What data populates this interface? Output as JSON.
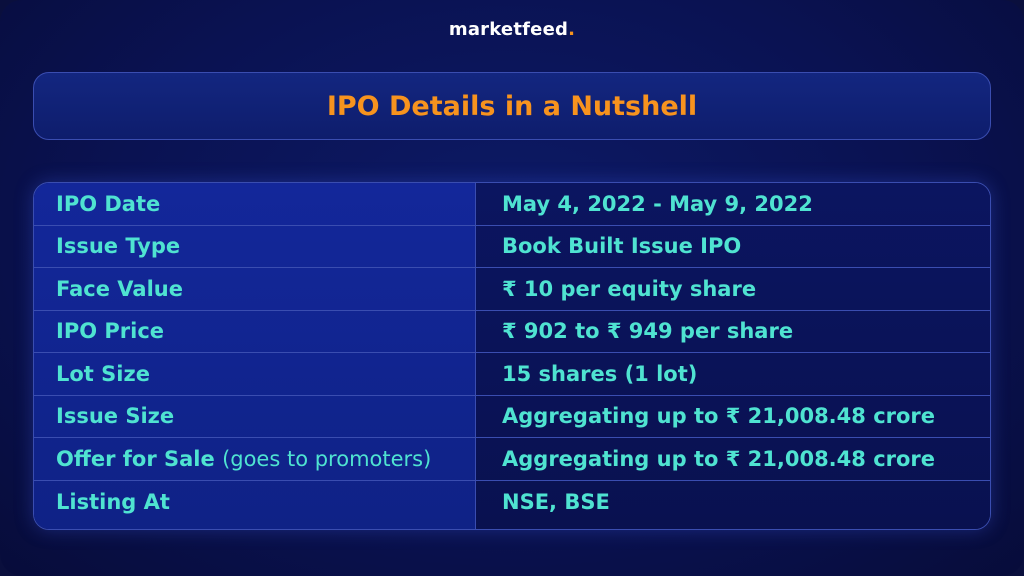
{
  "brand": {
    "name": "marketfeed",
    "suffix": "."
  },
  "title": "IPO Details in a Nutshell",
  "table": {
    "rows": [
      {
        "label": "IPO Date",
        "label_note": "",
        "value": "May 4, 2022 - May 9, 2022"
      },
      {
        "label": "Issue Type",
        "label_note": "",
        "value": "Book Built Issue IPO"
      },
      {
        "label": "Face Value",
        "label_note": "",
        "value": "₹ 10 per equity share"
      },
      {
        "label": "IPO Price",
        "label_note": "",
        "value": "₹ 902 to ₹ 949 per share"
      },
      {
        "label": "Lot Size",
        "label_note": "",
        "value": "15 shares (1 lot)"
      },
      {
        "label": "Issue Size",
        "label_note": "",
        "value": "Aggregating up to ₹ 21,008.48 crore"
      },
      {
        "label": "Offer for Sale",
        "label_note": "(goes to promoters)",
        "value": "Aggregating up to ₹ 21,008.48 crore"
      },
      {
        "label": "Listing At",
        "label_note": "",
        "value": "NSE, BSE"
      }
    ]
  },
  "colors": {
    "background": "#0a1252",
    "title": "#f7931e",
    "text": "#4fe3d1",
    "border": "#3a4db0"
  }
}
